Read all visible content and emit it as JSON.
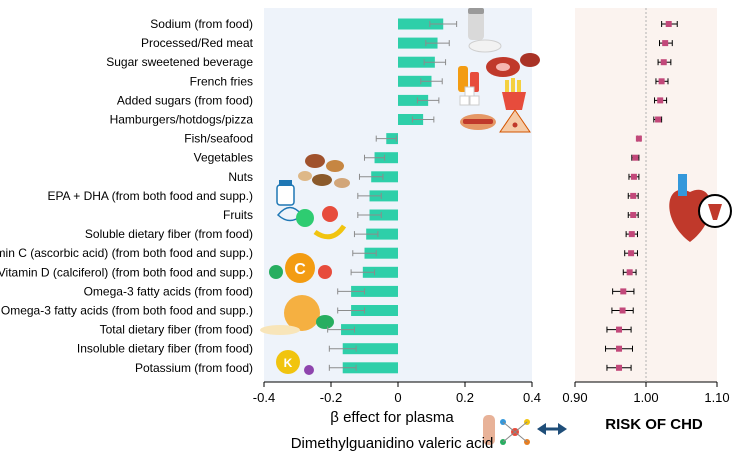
{
  "chart_data": [
    {
      "type": "bar",
      "orientation": "horizontal",
      "categories": [
        "Sodium (from food)",
        "Processed/Red meat",
        "Sugar sweetened beverage",
        "French fries",
        "Added sugars (from food)",
        "Hamburgers/hotdogs/pizza",
        "Fish/seafood",
        "Vegetables",
        "Nuts",
        "EPA + DHA (from both food and supp.)",
        "Fruits",
        "Soluble dietary fiber (from food)",
        "Vitamin C (ascorbic acid) (from both food and supp.)",
        "Vitamin D (calciferol) (from both food and supp.)",
        "Omega-3 fatty acids (from food)",
        "Omega-3 fatty acids (from both food and supp.)",
        "Total dietary fiber (from food)",
        "Insoluble dietary fiber (from food)",
        "Potassium (from food)"
      ],
      "values": [
        0.135,
        0.118,
        0.11,
        0.1,
        0.09,
        0.075,
        -0.035,
        -0.07,
        -0.08,
        -0.085,
        -0.085,
        -0.095,
        -0.1,
        -0.105,
        -0.14,
        -0.14,
        -0.17,
        -0.165,
        -0.165
      ],
      "errors": [
        0.04,
        0.035,
        0.032,
        0.032,
        0.032,
        0.032,
        0.03,
        0.03,
        0.035,
        0.035,
        0.035,
        0.035,
        0.035,
        0.035,
        0.04,
        0.04,
        0.04,
        0.04,
        0.04
      ],
      "xlim": [
        -0.4,
        0.4
      ],
      "xticks": [
        "-0.4",
        "-0.2",
        "0",
        "0.2",
        "0.4"
      ],
      "xlabel_line1": "β effect for plasma",
      "xlabel_line2": "Dimethylguanidino valeric acid",
      "bar_color": "#2ecfa9"
    },
    {
      "type": "scatter",
      "orientation": "forest",
      "values": [
        1.032,
        1.027,
        1.025,
        1.022,
        1.02,
        1.017,
        0.99,
        0.985,
        0.983,
        0.982,
        0.982,
        0.98,
        0.979,
        0.977,
        0.968,
        0.967,
        0.962,
        0.962,
        0.962
      ],
      "ci_low": [
        1.022,
        1.019,
        1.017,
        1.014,
        1.012,
        1.011,
        0.988,
        0.98,
        0.976,
        0.975,
        0.975,
        0.972,
        0.97,
        0.968,
        0.953,
        0.952,
        0.945,
        0.943,
        0.945
      ],
      "ci_high": [
        1.044,
        1.037,
        1.035,
        1.031,
        1.029,
        1.022,
        0.992,
        0.99,
        0.99,
        0.989,
        0.989,
        0.988,
        0.988,
        0.986,
        0.983,
        0.982,
        0.979,
        0.981,
        0.979
      ],
      "xlim": [
        0.9,
        1.1
      ],
      "xticks": [
        "0.90",
        "1.00",
        "1.10"
      ],
      "xlabel": "RISK OF CHD",
      "point_color": "#c2487a"
    }
  ]
}
